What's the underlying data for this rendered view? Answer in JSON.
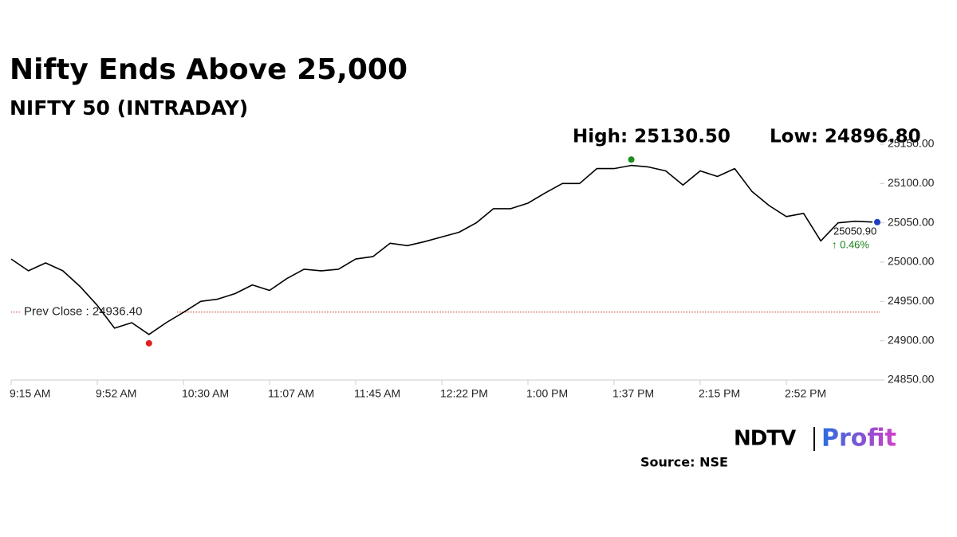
{
  "chart_data": {
    "type": "line",
    "title": "Nifty Ends Above 25,000",
    "subtitle": "NIFTY 50 (INTRADAY)",
    "color": "#000000",
    "categories": [
      "9:15 AM",
      null,
      null,
      null,
      null,
      "9:52 AM",
      null,
      null,
      null,
      null,
      "10:30 AM",
      null,
      null,
      null,
      null,
      "11:07 AM",
      null,
      null,
      null,
      null,
      "11:45 AM",
      null,
      null,
      null,
      null,
      "12:22 PM",
      null,
      null,
      null,
      null,
      "1:00 PM",
      null,
      null,
      null,
      null,
      "1:37 PM",
      null,
      null,
      null,
      null,
      "2:15 PM",
      null,
      null,
      null,
      null,
      "2:52 PM",
      null,
      null,
      null,
      null,
      null
    ],
    "values": [
      25004,
      24989,
      24999,
      24989,
      24969,
      24945,
      24916,
      24923,
      24908,
      24923,
      24936,
      24950,
      24953,
      24960,
      24971,
      24964,
      24979,
      24991,
      24989,
      24991,
      25004,
      25007,
      25024,
      25021,
      25026,
      25032,
      25038,
      25050,
      25068,
      25068,
      25075,
      25088,
      25100,
      25100,
      25119,
      25119,
      25123,
      25121,
      25116,
      25098,
      25116,
      25109,
      25119,
      25090,
      25072,
      25058,
      25062,
      25027,
      25050,
      25052,
      25051
    ],
    "ylim": [
      24850,
      25150
    ],
    "yticks": [
      {
        "value": 24850,
        "label": "24850.00"
      },
      {
        "value": 24900,
        "label": "24900.00"
      },
      {
        "value": 24950,
        "label": "24950.00"
      },
      {
        "value": 25000,
        "label": "25000.00"
      },
      {
        "value": 25050,
        "label": "25050.00"
      },
      {
        "value": 25100,
        "label": "25100.00"
      },
      {
        "value": 25150,
        "label": "25150.00"
      }
    ],
    "high": {
      "value": 25130.5,
      "label": "High: 25130.50",
      "color": "#1a8f1a"
    },
    "low": {
      "value": 24896.8,
      "label": "Low: 24896.80",
      "color": "#e02020"
    },
    "prev_close": {
      "value": 24936.4,
      "label": "Prev Close : 24936.40",
      "color": "#c0392b"
    },
    "last": {
      "value": 25050.9,
      "label": "25050.90",
      "color": "#1f3fbf"
    },
    "change": {
      "value": 0.46,
      "label": "↑ 0.46%",
      "color": "#1a7f1a"
    },
    "source": "Source: NSE",
    "logo": {
      "left": "NDTV",
      "right": "Profit"
    }
  }
}
